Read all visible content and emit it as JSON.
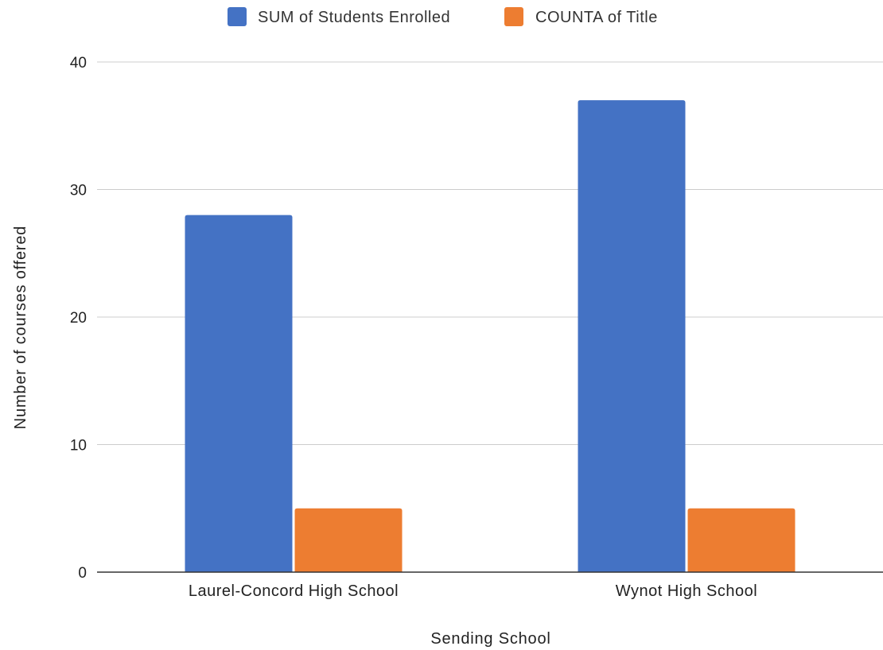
{
  "chart_data": {
    "type": "bar",
    "title": "",
    "xlabel": "Sending School",
    "ylabel": "Number of courses offered",
    "categories": [
      "Laurel-Concord High School",
      "Wynot High School"
    ],
    "series": [
      {
        "name": "SUM of Students Enrolled",
        "color": "#4472C4",
        "values": [
          28,
          37
        ]
      },
      {
        "name": "COUNTA of Title",
        "color": "#ED7D31",
        "values": [
          5,
          5
        ]
      }
    ],
    "ylim": [
      0,
      40
    ],
    "yticks": [
      0,
      10,
      20,
      30,
      40
    ],
    "grid": true,
    "legend_position": "top"
  }
}
